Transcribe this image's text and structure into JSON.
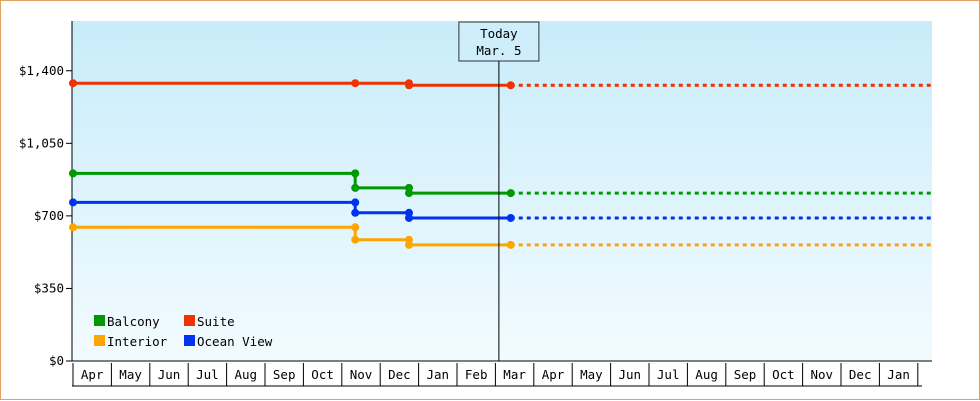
{
  "chart_data": {
    "type": "line",
    "title": "",
    "xlabel": "",
    "ylabel": "",
    "y_ticks": [
      "$0",
      "$350",
      "$700",
      "$1,050",
      "$1,400"
    ],
    "y_tick_values": [
      0,
      350,
      700,
      1050,
      1400
    ],
    "ylim": [
      0,
      1640
    ],
    "x_ticks": [
      "Apr",
      "May",
      "Jun",
      "Jul",
      "Aug",
      "Sep",
      "Oct",
      "Nov",
      "Dec",
      "Jan",
      "Feb",
      "Mar",
      "Apr",
      "May",
      "Jun",
      "Jul",
      "Aug",
      "Sep",
      "Oct",
      "Nov",
      "Dec",
      "Jan"
    ],
    "x_range": [
      "Apr",
      "Jan"
    ],
    "today_marker": {
      "line1": "Today",
      "line2": "Mar. 5",
      "month_index": 11
    },
    "grid": false,
    "legend_position": "bottom-left",
    "series": [
      {
        "name": "Balcony",
        "color": "#009a00",
        "points": [
          {
            "m": 0,
            "y": 905
          },
          {
            "m": 7.35,
            "y": 905
          },
          {
            "m": 7.35,
            "y": 835
          },
          {
            "m": 8.75,
            "y": 835
          },
          {
            "m": 8.75,
            "y": 810
          },
          {
            "m": 11.4,
            "y": 810
          }
        ],
        "projection_to_month": 22.4
      },
      {
        "name": "Suite",
        "color": "#ee3300",
        "points": [
          {
            "m": 0,
            "y": 1340
          },
          {
            "m": 7.35,
            "y": 1340
          },
          {
            "m": 8.75,
            "y": 1340
          },
          {
            "m": 8.75,
            "y": 1330
          },
          {
            "m": 11.4,
            "y": 1330
          }
        ],
        "projection_to_month": 22.4
      },
      {
        "name": "Interior",
        "color": "#ffa500",
        "points": [
          {
            "m": 0,
            "y": 645
          },
          {
            "m": 7.35,
            "y": 645
          },
          {
            "m": 7.35,
            "y": 585
          },
          {
            "m": 8.75,
            "y": 585
          },
          {
            "m": 8.75,
            "y": 560
          },
          {
            "m": 11.4,
            "y": 560
          }
        ],
        "projection_to_month": 22.4
      },
      {
        "name": "Ocean View",
        "color": "#0033ee",
        "points": [
          {
            "m": 0,
            "y": 765
          },
          {
            "m": 7.35,
            "y": 765
          },
          {
            "m": 7.35,
            "y": 715
          },
          {
            "m": 8.75,
            "y": 715
          },
          {
            "m": 8.75,
            "y": 690
          },
          {
            "m": 11.4,
            "y": 690
          }
        ],
        "projection_to_month": 22.4
      }
    ],
    "legend": [
      {
        "name": "Balcony",
        "color": "#009a00"
      },
      {
        "name": "Suite",
        "color": "#ee3300"
      },
      {
        "name": "Interior",
        "color": "#ffa500"
      },
      {
        "name": "Ocean View",
        "color": "#0033ee"
      }
    ]
  }
}
